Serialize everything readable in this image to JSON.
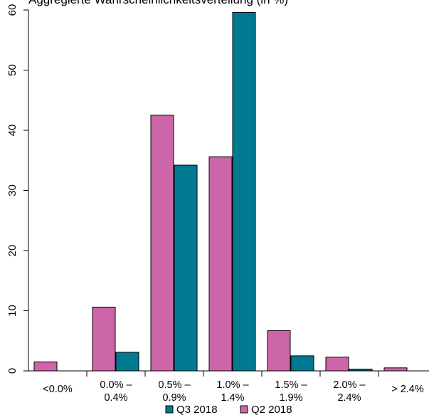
{
  "chart_data": {
    "type": "bar",
    "title": "Aggregierte Wahrscheinlichkeitsverteilung (in %)",
    "xlabel": "",
    "ylabel": "",
    "ylim": [
      0,
      60
    ],
    "yticks": [
      0,
      10,
      20,
      30,
      40,
      50,
      60
    ],
    "categories": [
      [
        "<0.0%"
      ],
      [
        "0.0% –",
        "0.4%"
      ],
      [
        "0.5% –",
        "0.9%"
      ],
      [
        "1.0% –",
        "1.4%"
      ],
      [
        "1.5% –",
        "1.9%"
      ],
      [
        "2.0% –",
        "2.4%"
      ],
      [
        "> 2.4%"
      ]
    ],
    "series": [
      {
        "name": "Q2 2018",
        "color": "#cc66a8",
        "values": [
          1.5,
          10.6,
          42.5,
          35.6,
          6.7,
          2.3,
          0.5
        ]
      },
      {
        "name": "Q3 2018",
        "color": "#007a91",
        "values": [
          0.0,
          3.1,
          34.2,
          59.6,
          2.5,
          0.3,
          0.0
        ]
      }
    ],
    "legend": {
      "placement": "bottom",
      "entries": [
        {
          "name": "Q3 2018",
          "color": "#007a91"
        },
        {
          "name": "Q2 2018",
          "color": "#cc66a8"
        }
      ]
    },
    "grid": false
  }
}
